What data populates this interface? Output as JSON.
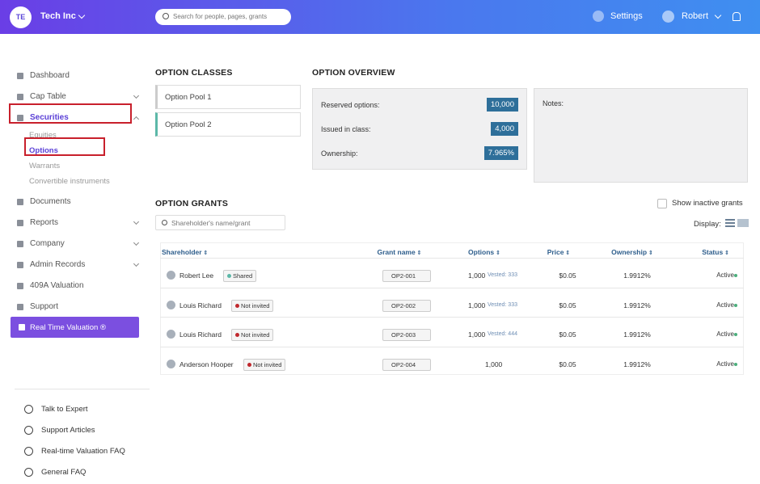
{
  "header": {
    "company_initials": "TE",
    "company": "Tech Inc",
    "search_placeholder": "Search for people, pages, grants",
    "settings": "Settings",
    "user": "Robert"
  },
  "sidebar": {
    "nav": [
      "Dashboard",
      "Cap Table",
      "Securities",
      "Documents",
      "Reports",
      "Company",
      "Admin Records",
      "409A Valuation",
      "Support"
    ],
    "securities_sub": [
      "Equities",
      "Options",
      "Warrants",
      "Convertible instruments"
    ],
    "cta": "Real Time Valuation ®",
    "footer": [
      "Talk to Expert",
      "Support Articles",
      "Real-time Valuation FAQ",
      "General FAQ"
    ]
  },
  "option_classes": {
    "title": "OPTION CLASSES",
    "items": [
      "Option Pool 1",
      "Option Pool 2"
    ]
  },
  "option_overview": {
    "title": "OPTION OVERVIEW",
    "rows": [
      {
        "label": "Reserved options:",
        "value": "10,000"
      },
      {
        "label": "Issued in class:",
        "value": "4,000"
      },
      {
        "label": "Ownership:",
        "value": "7.965%"
      }
    ],
    "notes": "Notes:"
  },
  "option_grants": {
    "title": "OPTION GRANTS",
    "show_inactive": "Show inactive grants",
    "search_placeholder": "Shareholder's name/grant",
    "display": "Display:",
    "columns": [
      "Shareholder",
      "Grant name",
      "Options",
      "Price",
      "Ownership",
      "Status"
    ],
    "rows": [
      {
        "shareholder": "Robert Lee",
        "badge": "Shared",
        "badge_color": "#5cb8a8",
        "grant": "OP2-001",
        "options": "1,000",
        "vested": "Vested: 333",
        "price": "$0.05",
        "ownership": "1.9912%",
        "status": "Active"
      },
      {
        "shareholder": "Louis Richard",
        "badge": "Not invited",
        "badge_color": "#c0282d",
        "grant": "OP2-002",
        "options": "1,000",
        "vested": "Vested: 333",
        "price": "$0.05",
        "ownership": "1.9912%",
        "status": "Active"
      },
      {
        "shareholder": "Louis Richard",
        "badge": "Not invited",
        "badge_color": "#c0282d",
        "grant": "OP2-003",
        "options": "1,000",
        "vested": "Vested: 444",
        "price": "$0.05",
        "ownership": "1.9912%",
        "status": "Active"
      },
      {
        "shareholder": "Anderson Hooper",
        "badge": "Not invited",
        "badge_color": "#c0282d",
        "grant": "OP2-004",
        "options": "1,000",
        "vested": null,
        "price": "$0.05",
        "ownership": "1.9912%",
        "status": "Active"
      }
    ]
  }
}
